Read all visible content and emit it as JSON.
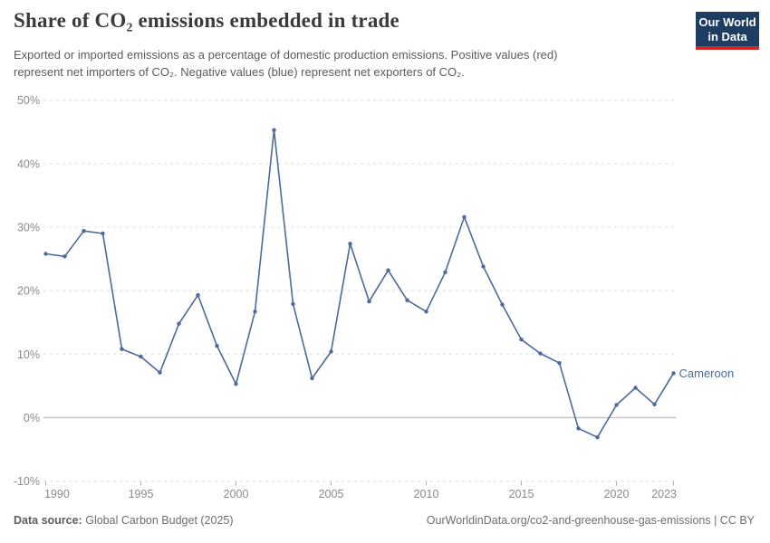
{
  "header": {
    "title": "Share of CO₂ emissions embedded in trade",
    "subtitle_line1": "Exported or imported emissions as a percentage of domestic production emissions. Positive values (red)",
    "subtitle_line2": "represent net importers of CO₂. Negative values (blue) represent net exporters of CO₂."
  },
  "logo": {
    "line1": "Our World",
    "line2": "in Data",
    "bg_color": "#1d3d63",
    "accent_color": "#cc2a24"
  },
  "chart_data": {
    "type": "line",
    "title": "Share of CO₂ emissions embedded in trade",
    "xlabel": "",
    "ylabel": "",
    "xlim": [
      1990,
      2023
    ],
    "ylim": [
      -10,
      50
    ],
    "grid": "horizontal-dashed",
    "zero_line": true,
    "legend_position": "end-of-line-label",
    "x_ticks": [
      1990,
      1995,
      2000,
      2005,
      2010,
      2015,
      2020,
      2023
    ],
    "y_ticks": [
      {
        "value": 50,
        "label": "50%"
      },
      {
        "value": 40,
        "label": "40%"
      },
      {
        "value": 30,
        "label": "30%"
      },
      {
        "value": 20,
        "label": "20%"
      },
      {
        "value": 10,
        "label": "10%"
      },
      {
        "value": 0,
        "label": "0%"
      },
      {
        "value": -10,
        "label": "-10%"
      }
    ],
    "x": [
      1990,
      1991,
      1992,
      1993,
      1994,
      1995,
      1996,
      1997,
      1998,
      1999,
      2000,
      2001,
      2002,
      2003,
      2004,
      2005,
      2006,
      2007,
      2008,
      2009,
      2010,
      2011,
      2012,
      2013,
      2014,
      2015,
      2016,
      2017,
      2018,
      2019,
      2020,
      2021,
      2022,
      2023
    ],
    "series": [
      {
        "name": "Cameroon",
        "color": "#4c6a9c",
        "values": [
          25.8,
          25.4,
          29.4,
          29.0,
          10.8,
          9.6,
          7.1,
          14.8,
          19.3,
          11.3,
          5.3,
          16.7,
          45.3,
          17.9,
          6.2,
          10.4,
          27.4,
          18.3,
          23.2,
          18.5,
          16.7,
          22.9,
          31.6,
          23.8,
          17.8,
          12.3,
          10.1,
          8.6,
          -1.7,
          -3.1,
          2.0,
          4.7,
          2.1,
          7.0
        ]
      }
    ]
  },
  "footer": {
    "datasource_label": "Data source:",
    "datasource_value": "Global Carbon Budget (2025)",
    "credit": "OurWorldinData.org/co2-and-greenhouse-gas-emissions | CC BY"
  },
  "colors": {
    "line": "#4c6a9c",
    "grid": "#dcdcdc",
    "zero_line": "#c6c6c6",
    "axis_text": "#8b8b8b",
    "tick_mark": "#b3b3b3",
    "title_text": "#3b3b3b",
    "subtitle_text": "#5b5b5b",
    "footer_text": "#6e6e6e"
  }
}
